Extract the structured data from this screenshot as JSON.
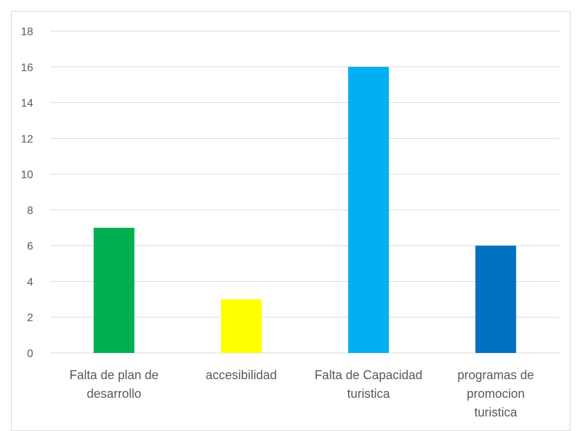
{
  "chart_data": {
    "type": "bar",
    "title": "",
    "xlabel": "",
    "ylabel": "",
    "categories": [
      [
        "Falta de plan de",
        "desarrollo"
      ],
      [
        "accesibilidad"
      ],
      [
        "Falta de Capacidad",
        "turistica"
      ],
      [
        "programas de",
        "promocion",
        "turistica"
      ]
    ],
    "values": [
      7,
      3,
      16,
      6
    ],
    "colors": [
      "#00B050",
      "#FFFF00",
      "#00B0F0",
      "#0070C0"
    ],
    "ylim": [
      0,
      18
    ],
    "yticks": [
      0,
      2,
      4,
      6,
      8,
      10,
      12,
      14,
      16,
      18
    ],
    "grid": true,
    "legend": "none"
  }
}
